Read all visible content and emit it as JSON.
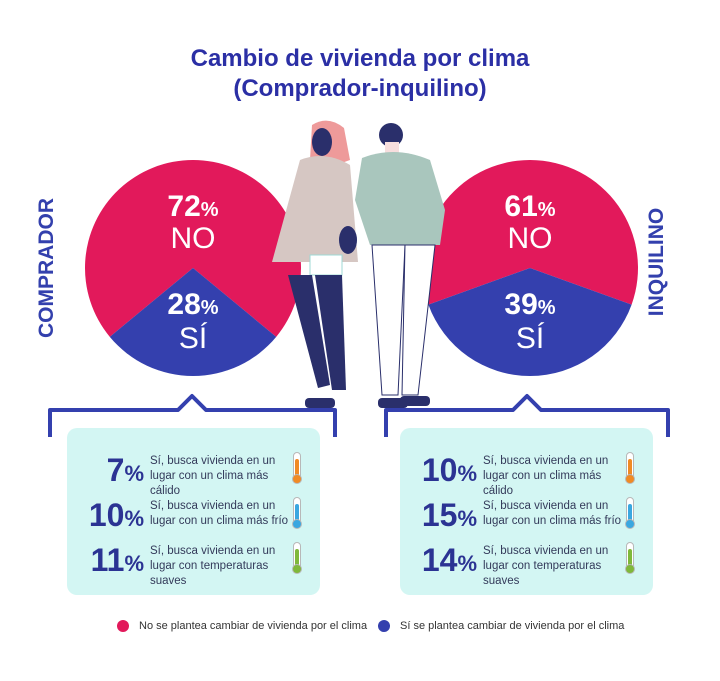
{
  "title_line1": "Cambio de vivienda por clima",
  "title_line2": "(Comprador-inquilino)",
  "colors": {
    "no": "#e2195b",
    "si": "#3440ae",
    "box": "#d3f6f3",
    "warm": "#f08a24",
    "cold": "#3aa7e0",
    "mild": "#7fb83a"
  },
  "chart_data": [
    {
      "type": "pie",
      "group": "COMPRADOR",
      "slices": [
        {
          "label": "NO",
          "value": 72
        },
        {
          "label": "SÍ",
          "value": 28
        }
      ],
      "details": [
        {
          "value": 7,
          "text": "Sí, busca vivienda en un lugar con un clima más cálido",
          "icon": "thermometer-warm-icon"
        },
        {
          "value": 10,
          "text": "Sí, busca vivienda en un lugar con un clima más frío",
          "icon": "thermometer-cold-icon"
        },
        {
          "value": 11,
          "text": "Sí, busca vivienda en un lugar con temperaturas suaves",
          "icon": "thermometer-mild-icon"
        }
      ]
    },
    {
      "type": "pie",
      "group": "INQUILINO",
      "slices": [
        {
          "label": "NO",
          "value": 61
        },
        {
          "label": "SÍ",
          "value": 39
        }
      ],
      "details": [
        {
          "value": 10,
          "text": "Sí, busca vivienda en un lugar con un clima más cálido",
          "icon": "thermometer-warm-icon"
        },
        {
          "value": 15,
          "text": "Sí, busca vivienda en un lugar con un clima más frío",
          "icon": "thermometer-cold-icon"
        },
        {
          "value": 14,
          "text": "Sí, busca vivienda en un lugar con temperaturas suaves",
          "icon": "thermometer-mild-icon"
        }
      ]
    }
  ],
  "percent_sign": "%",
  "legend": [
    {
      "label": "No se plantea cambiar de vivienda por el clima",
      "color": "#e2195b"
    },
    {
      "label": "Sí se plantea cambiar de vivienda por el clima",
      "color": "#3440ae"
    }
  ]
}
